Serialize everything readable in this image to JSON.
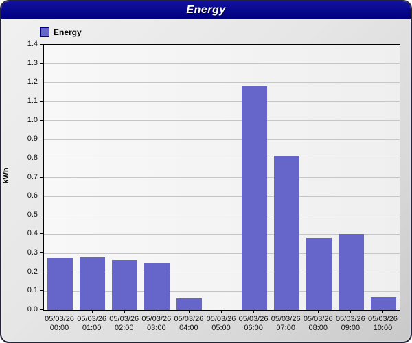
{
  "window": {
    "title": "Energy"
  },
  "legend": {
    "label": "Energy"
  },
  "colors": {
    "title_bar": "#000087",
    "bar_fill": "#6565CA",
    "legend_swatch": "#6565CA",
    "legend_swatch_border": "#000080",
    "gridline": "#C6C6C6",
    "plot_border": "#000000"
  },
  "chart_data": {
    "type": "bar",
    "title": "Energy",
    "xlabel": "",
    "ylabel": "kWh",
    "ylim": [
      0,
      1.4
    ],
    "ytick_step": 0.1,
    "grid": true,
    "legend_position": "top-left",
    "series_name": "Energy",
    "categories": [
      "05/03/26 00:00",
      "05/03/26 01:00",
      "05/03/26 02:00",
      "05/03/26 03:00",
      "05/03/26 04:00",
      "05/03/26 05:00",
      "05/03/26 06:00",
      "05/03/26 07:00",
      "05/03/26 08:00",
      "05/03/26 09:00",
      "05/03/26 10:00"
    ],
    "values": [
      0.275,
      0.28,
      0.265,
      0.245,
      0.06,
      0,
      1.18,
      0.815,
      0.38,
      0.4,
      0.07
    ]
  }
}
